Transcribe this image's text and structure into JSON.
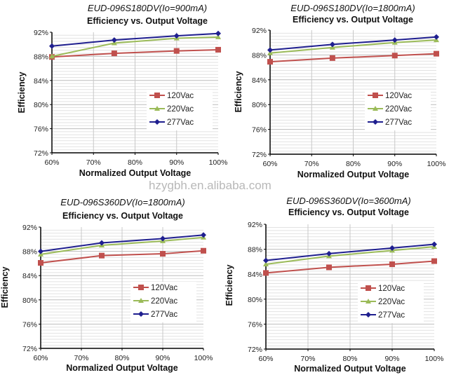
{
  "watermark": "hzygbh.en.alibaba.com",
  "chart_data": [
    {
      "type": "line",
      "title": "EUD-096S180DV(Io=900mA)",
      "subtitle": "Efficiency vs. Output Voltage",
      "xlabel": "Normalized Output Voltage",
      "ylabel": "Efficiency",
      "x": [
        60,
        75,
        90,
        100
      ],
      "xlim": [
        60,
        100
      ],
      "ylim": [
        72,
        92
      ],
      "xticks": [
        "60%",
        "70%",
        "80%",
        "90%",
        "100%"
      ],
      "yticks": [
        "72%",
        "76%",
        "80%",
        "84%",
        "88%",
        "92%"
      ],
      "legend_position": "center-right",
      "series": [
        {
          "name": "120Vac",
          "color": "#c0504d",
          "marker": "square",
          "values": [
            87.9,
            88.5,
            88.9,
            89.1
          ]
        },
        {
          "name": "220Vac",
          "color": "#9bbb59",
          "marker": "triangle",
          "values": [
            88.0,
            90.2,
            91.0,
            91.2
          ]
        },
        {
          "name": "277Vac",
          "color": "#1f1f8f",
          "marker": "diamond",
          "values": [
            89.7,
            90.7,
            91.4,
            91.8
          ]
        }
      ]
    },
    {
      "type": "line",
      "title": "EUD-096S180DV(Io=1800mA)",
      "subtitle": "Efficiency vs. Output Voltage",
      "xlabel": "Normalized Output Voltage",
      "ylabel": "Efficiency",
      "x": [
        60,
        75,
        90,
        100
      ],
      "xlim": [
        60,
        100
      ],
      "ylim": [
        72,
        92
      ],
      "xticks": [
        "60%",
        "70%",
        "80%",
        "90%",
        "100%"
      ],
      "yticks": [
        "72%",
        "76%",
        "80%",
        "84%",
        "88%",
        "92%"
      ],
      "legend_position": "center-right",
      "series": [
        {
          "name": "120Vac",
          "color": "#c0504d",
          "marker": "square",
          "values": [
            86.9,
            87.5,
            87.9,
            88.2
          ]
        },
        {
          "name": "220Vac",
          "color": "#9bbb59",
          "marker": "triangle",
          "values": [
            88.3,
            89.2,
            90.0,
            90.4
          ]
        },
        {
          "name": "277Vac",
          "color": "#1f1f8f",
          "marker": "diamond",
          "values": [
            88.8,
            89.7,
            90.4,
            90.9
          ]
        }
      ]
    },
    {
      "type": "line",
      "title": "EUD-096S360DV(Io=1800mA)",
      "subtitle": "Efficiency vs. Output Voltage",
      "xlabel": "Normalized Output Voltage",
      "ylabel": "Efficiency",
      "x": [
        60,
        75,
        90,
        100
      ],
      "xlim": [
        60,
        100
      ],
      "ylim": [
        72,
        92
      ],
      "xticks": [
        "60%",
        "70%",
        "80%",
        "90%",
        "100%"
      ],
      "yticks": [
        "72%",
        "76%",
        "80%",
        "84%",
        "88%",
        "92%"
      ],
      "legend_position": "center-right",
      "series": [
        {
          "name": "120Vac",
          "color": "#c0504d",
          "marker": "square",
          "values": [
            86.1,
            87.3,
            87.6,
            88.1
          ]
        },
        {
          "name": "220Vac",
          "color": "#9bbb59",
          "marker": "triangle",
          "values": [
            87.5,
            89.0,
            89.7,
            90.3
          ]
        },
        {
          "name": "277Vac",
          "color": "#1f1f8f",
          "marker": "diamond",
          "values": [
            88.0,
            89.4,
            90.1,
            90.7
          ]
        }
      ]
    },
    {
      "type": "line",
      "title": "EUD-096S360DV(Io=3600mA)",
      "subtitle": "Efficiency vs. Output Voltage",
      "xlabel": "Normalized Output Voltage",
      "ylabel": "Efficiency",
      "x": [
        60,
        75,
        90,
        100
      ],
      "xlim": [
        60,
        100
      ],
      "ylim": [
        72,
        92
      ],
      "xticks": [
        "60%",
        "70%",
        "80%",
        "90%",
        "100%"
      ],
      "yticks": [
        "72%",
        "76%",
        "80%",
        "84%",
        "88%",
        "92%"
      ],
      "legend_position": "center-right",
      "series": [
        {
          "name": "120Vac",
          "color": "#c0504d",
          "marker": "square",
          "values": [
            84.2,
            85.1,
            85.6,
            86.1
          ]
        },
        {
          "name": "220Vac",
          "color": "#9bbb59",
          "marker": "triangle",
          "values": [
            85.6,
            86.9,
            87.8,
            88.4
          ]
        },
        {
          "name": "277Vac",
          "color": "#1f1f8f",
          "marker": "diamond",
          "values": [
            86.2,
            87.3,
            88.2,
            88.8
          ]
        }
      ]
    }
  ]
}
